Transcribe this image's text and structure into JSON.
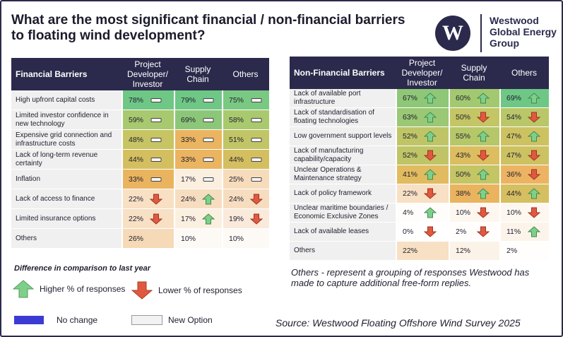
{
  "title": "What are the most significant financial / non-financial barriers to floating wind development?",
  "logo": {
    "letter": "W",
    "line1": "Westwood",
    "line2": "Global Energy",
    "line3": "Group"
  },
  "colors": {
    "header": "#2b2a4c",
    "green": "#7fcf8a",
    "red": "#e0593f",
    "nochange": "#3b3bd4"
  },
  "financial": {
    "header": [
      "Financial Barriers",
      "Project Developer/ Investor",
      "Supply Chain",
      "Others"
    ],
    "rows": [
      {
        "label": "High upfront capital costs",
        "cells": [
          {
            "v": "78%",
            "i": "same",
            "c": "#6fc786"
          },
          {
            "v": "79%",
            "i": "same",
            "c": "#6fc786"
          },
          {
            "v": "75%",
            "i": "same",
            "c": "#7ac983"
          }
        ]
      },
      {
        "label": "Limited investor confidence in new technology",
        "cells": [
          {
            "v": "59%",
            "i": "same",
            "c": "#a8c96f"
          },
          {
            "v": "69%",
            "i": "same",
            "c": "#8cc779"
          },
          {
            "v": "58%",
            "i": "same",
            "c": "#a9c96e"
          }
        ]
      },
      {
        "label": "Expensive grid connection and infrastructure costs",
        "cells": [
          {
            "v": "48%",
            "i": "same",
            "c": "#c7c464"
          },
          {
            "v": "33%",
            "i": "same",
            "c": "#ebb460"
          },
          {
            "v": "51%",
            "i": "same",
            "c": "#c1c566"
          }
        ]
      },
      {
        "label": "Lack of long-term revenue certainty",
        "cells": [
          {
            "v": "44%",
            "i": "same",
            "c": "#d4bf60"
          },
          {
            "v": "33%",
            "i": "same",
            "c": "#ebb460"
          },
          {
            "v": "44%",
            "i": "same",
            "c": "#d4bf60"
          }
        ]
      },
      {
        "label": "Inflation",
        "cells": [
          {
            "v": "33%",
            "i": "same",
            "c": "#eab45f"
          },
          {
            "v": "17%",
            "i": "same",
            "c": "#fbefe0"
          },
          {
            "v": "25%",
            "i": "same",
            "c": "#f7dcbb"
          }
        ]
      },
      {
        "label": "Lack of access to finance",
        "cells": [
          {
            "v": "22%",
            "i": "down",
            "c": "#f8e0c4"
          },
          {
            "v": "24%",
            "i": "up",
            "c": "#f7ddbf"
          },
          {
            "v": "24%",
            "i": "down",
            "c": "#f7ddbf"
          }
        ]
      },
      {
        "label": "Limited insurance options",
        "cells": [
          {
            "v": "22%",
            "i": "down",
            "c": "#f8e0c4"
          },
          {
            "v": "17%",
            "i": "up",
            "c": "#fbefe0"
          },
          {
            "v": "19%",
            "i": "down",
            "c": "#faeadb"
          }
        ]
      },
      {
        "label": "Others",
        "cells": [
          {
            "v": "26%",
            "i": "",
            "c": "#f6d9b6"
          },
          {
            "v": "10%",
            "i": "",
            "c": "#fdfaf6"
          },
          {
            "v": "10%",
            "i": "",
            "c": "#fdfaf6"
          }
        ]
      }
    ]
  },
  "nonfinancial": {
    "header": [
      "Non-Financial Barriers",
      "Project Developer/ Investor",
      "Supply Chain",
      "Others"
    ],
    "rows": [
      {
        "label": "Lack of available port infrastructure",
        "cells": [
          {
            "v": "67%",
            "i": "up",
            "c": "#8fc778"
          },
          {
            "v": "60%",
            "i": "up",
            "c": "#a3c970"
          },
          {
            "v": "69%",
            "i": "up",
            "c": "#6fc786"
          }
        ]
      },
      {
        "label": "Lack of standardisation of floating technologies",
        "cells": [
          {
            "v": "63%",
            "i": "up",
            "c": "#9ac874"
          },
          {
            "v": "50%",
            "i": "down",
            "c": "#c4c565"
          },
          {
            "v": "54%",
            "i": "down",
            "c": "#b9c769"
          }
        ]
      },
      {
        "label": "Low government support levels",
        "cells": [
          {
            "v": "52%",
            "i": "up",
            "c": "#bfc567"
          },
          {
            "v": "55%",
            "i": "up",
            "c": "#b6c76a"
          },
          {
            "v": "47%",
            "i": "up",
            "c": "#cdc262"
          }
        ]
      },
      {
        "label": "Lack of manufacturing capability/capacity",
        "cells": [
          {
            "v": "52%",
            "i": "down",
            "c": "#bfc567"
          },
          {
            "v": "43%",
            "i": "down",
            "c": "#dcbd5f"
          },
          {
            "v": "47%",
            "i": "down",
            "c": "#cdc262"
          }
        ]
      },
      {
        "label": "Unclear Operations & Maintenance strategy",
        "cells": [
          {
            "v": "41%",
            "i": "up",
            "c": "#e1bb5f"
          },
          {
            "v": "50%",
            "i": "up",
            "c": "#c4c565"
          },
          {
            "v": "36%",
            "i": "down",
            "c": "#ecb462"
          }
        ]
      },
      {
        "label": "Lack of policy framework",
        "cells": [
          {
            "v": "22%",
            "i": "down",
            "c": "#f8e0c4"
          },
          {
            "v": "38%",
            "i": "up",
            "c": "#eab45f"
          },
          {
            "v": "44%",
            "i": "up",
            "c": "#d6bf60"
          }
        ]
      },
      {
        "label": "Unclear maritime boundaries / Economic Exclusive Zones",
        "cells": [
          {
            "v": "4%",
            "i": "up",
            "c": "#fefdfb"
          },
          {
            "v": "10%",
            "i": "down",
            "c": "#fdf7f0"
          },
          {
            "v": "10%",
            "i": "down",
            "c": "#fdf7f0"
          }
        ]
      },
      {
        "label": "Lack of available leases",
        "cells": [
          {
            "v": "0%",
            "i": "down",
            "c": "#ffffff"
          },
          {
            "v": "2%",
            "i": "down",
            "c": "#fffefd"
          },
          {
            "v": "11%",
            "i": "up",
            "c": "#fcf4ea"
          }
        ]
      },
      {
        "label": "Others",
        "cells": [
          {
            "v": "22%",
            "i": "",
            "c": "#f8e0c4"
          },
          {
            "v": "12%",
            "i": "",
            "c": "#fcf3e8"
          },
          {
            "v": "2%",
            "i": "",
            "c": "#fffefd"
          }
        ]
      }
    ]
  },
  "legend": {
    "title": "Difference in comparison to last year",
    "higher": "Higher % of responses",
    "lower": "Lower % of responses",
    "nochange": "No change",
    "newoption": "New Option"
  },
  "note": "Others - represent a grouping of responses Westwood has made to capture additional free-form replies.",
  "source": "Source: Westwood Floating Offshore Wind Survey 2025"
}
